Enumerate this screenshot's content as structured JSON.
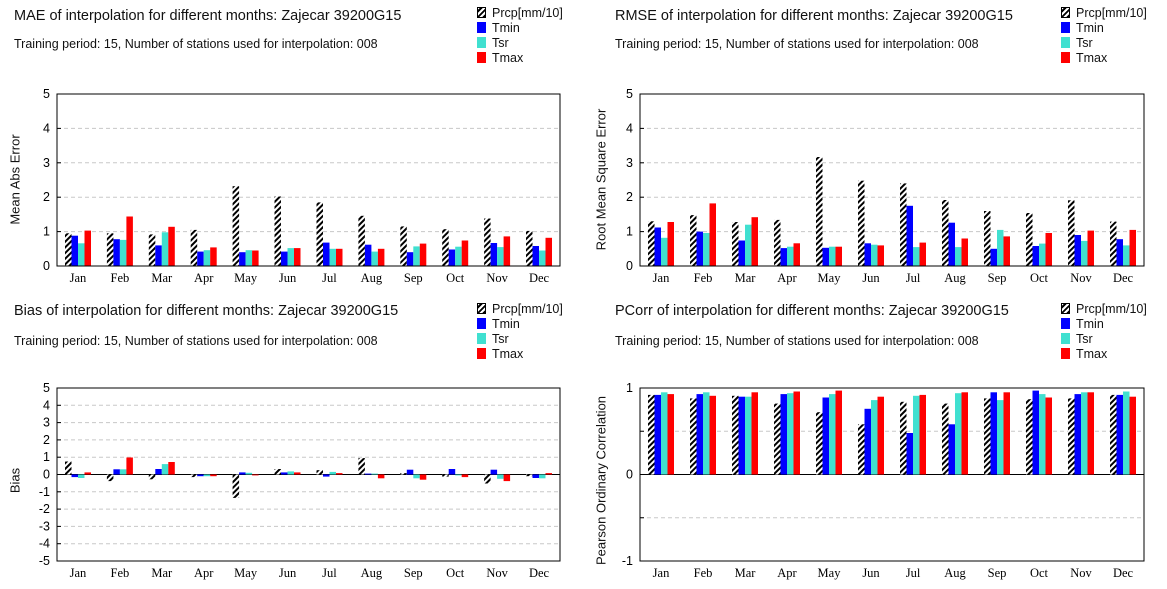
{
  "legend_items": [
    {
      "name": "Prcp[mm/10]",
      "color": "#000000",
      "pattern": "hatch"
    },
    {
      "name": "Tmin",
      "color": "#0000ff"
    },
    {
      "name": "Tsr",
      "color": "#40e0d0"
    },
    {
      "name": "Tmax",
      "color": "#ff0000"
    }
  ],
  "chart_data": [
    {
      "type": "bar",
      "title": "MAE of interpolation for different months: Zajecar  39200G15",
      "subtitle": "Training period: 15, Number of stations used for interpolation: 008",
      "ylabel": "Mean Abs Error",
      "ylim": [
        0,
        5
      ],
      "yticks": [
        "0",
        "1",
        "2",
        "3",
        "4",
        "5"
      ],
      "categories": [
        "Jan",
        "Feb",
        "Mar",
        "Apr",
        "May",
        "Jun",
        "Jul",
        "Aug",
        "Sep",
        "Oct",
        "Nov",
        "Dec"
      ],
      "grid": true,
      "series": [
        {
          "name": "Prcp[mm/10]",
          "values": [
            0.95,
            0.95,
            0.92,
            1.05,
            2.32,
            2.02,
            1.85,
            1.46,
            1.15,
            1.07,
            1.38,
            1.02
          ]
        },
        {
          "name": "Tmin",
          "values": [
            0.88,
            0.78,
            0.6,
            0.42,
            0.4,
            0.42,
            0.68,
            0.62,
            0.4,
            0.48,
            0.67,
            0.58
          ]
        },
        {
          "name": "Tsr",
          "values": [
            0.66,
            0.76,
            0.98,
            0.46,
            0.46,
            0.52,
            0.5,
            0.42,
            0.57,
            0.56,
            0.55,
            0.45
          ]
        },
        {
          "name": "Tmax",
          "values": [
            1.03,
            1.44,
            1.14,
            0.54,
            0.45,
            0.52,
            0.5,
            0.5,
            0.65,
            0.74,
            0.86,
            0.82
          ]
        }
      ]
    },
    {
      "type": "bar",
      "title": "RMSE of interpolation for different months: Zajecar  39200G15",
      "subtitle": "Training period: 15, Number of stations used for interpolation: 008",
      "ylabel": "Root Mean Square Error",
      "ylim": [
        0,
        5
      ],
      "yticks": [
        "0",
        "1",
        "2",
        "3",
        "4",
        "5"
      ],
      "categories": [
        "Jan",
        "Feb",
        "Mar",
        "Apr",
        "May",
        "Jun",
        "Jul",
        "Aug",
        "Sep",
        "Oct",
        "Nov",
        "Dec"
      ],
      "grid": true,
      "series": [
        {
          "name": "Prcp[mm/10]",
          "values": [
            1.3,
            1.48,
            1.28,
            1.34,
            3.17,
            2.48,
            2.4,
            1.92,
            1.6,
            1.54,
            1.91,
            1.29
          ]
        },
        {
          "name": "Tmin",
          "values": [
            1.12,
            1.0,
            0.74,
            0.52,
            0.53,
            0.66,
            1.75,
            1.26,
            0.5,
            0.58,
            0.9,
            0.78
          ]
        },
        {
          "name": "Tsr",
          "values": [
            0.82,
            0.96,
            1.2,
            0.56,
            0.56,
            0.62,
            0.55,
            0.55,
            1.05,
            0.65,
            0.73,
            0.6
          ]
        },
        {
          "name": "Tmax",
          "values": [
            1.28,
            1.82,
            1.42,
            0.66,
            0.56,
            0.6,
            0.68,
            0.8,
            0.86,
            0.96,
            1.03,
            1.05
          ]
        }
      ]
    },
    {
      "type": "bar",
      "title": "Bias of interpolation for different months: Zajecar  39200G15",
      "subtitle": "Training period: 15, Number of stations used for interpolation: 008",
      "ylabel": "Bias",
      "ylim": [
        -5,
        5
      ],
      "yticks": [
        "-5",
        "-4",
        "-3",
        "-2",
        "-1",
        "0",
        "1",
        "2",
        "3",
        "4",
        "5"
      ],
      "categories": [
        "Jan",
        "Feb",
        "Mar",
        "Apr",
        "May",
        "Jun",
        "Jul",
        "Aug",
        "Sep",
        "Oct",
        "Nov",
        "Dec"
      ],
      "grid": true,
      "series": [
        {
          "name": "Prcp[mm/10]",
          "values": [
            0.75,
            -0.38,
            -0.28,
            -0.15,
            -1.35,
            0.32,
            0.25,
            0.95,
            0.08,
            -0.12,
            -0.52,
            -0.1
          ]
        },
        {
          "name": "Tmin",
          "values": [
            -0.15,
            0.3,
            0.32,
            -0.1,
            0.12,
            0.12,
            -0.12,
            0.05,
            0.28,
            0.32,
            0.28,
            -0.2
          ]
        },
        {
          "name": "Tsr",
          "values": [
            -0.2,
            0.3,
            0.6,
            -0.1,
            0.1,
            0.18,
            0.15,
            0.05,
            -0.22,
            -0.05,
            -0.25,
            -0.22
          ]
        },
        {
          "name": "Tmax",
          "values": [
            0.12,
            0.98,
            0.72,
            -0.1,
            -0.05,
            0.12,
            0.08,
            -0.22,
            -0.3,
            -0.15,
            -0.38,
            0.08
          ]
        }
      ]
    },
    {
      "type": "bar",
      "title": "PCorr of interpolation for different months: Zajecar  39200G15",
      "subtitle": "Training period: 15, Number of stations used for interpolation: 008",
      "ylabel": "Pearson Ordinary Correlation",
      "ylim": [
        -1,
        1
      ],
      "yticks": [
        "-1",
        "",
        "0",
        "",
        "1"
      ],
      "categories": [
        "Jan",
        "Feb",
        "Mar",
        "Apr",
        "May",
        "Jun",
        "Jul",
        "Aug",
        "Sep",
        "Oct",
        "Nov",
        "Dec"
      ],
      "grid": true,
      "series": [
        {
          "name": "Prcp[mm/10]",
          "values": [
            0.92,
            0.88,
            0.91,
            0.82,
            0.72,
            0.58,
            0.84,
            0.82,
            0.88,
            0.87,
            0.88,
            0.92
          ]
        },
        {
          "name": "Tmin",
          "values": [
            0.92,
            0.93,
            0.9,
            0.93,
            0.89,
            0.76,
            0.48,
            0.58,
            0.95,
            0.97,
            0.93,
            0.92
          ]
        },
        {
          "name": "Tsr",
          "values": [
            0.95,
            0.95,
            0.9,
            0.94,
            0.93,
            0.86,
            0.91,
            0.94,
            0.86,
            0.93,
            0.95,
            0.96
          ]
        },
        {
          "name": "Tmax",
          "values": [
            0.93,
            0.91,
            0.95,
            0.96,
            0.97,
            0.9,
            0.92,
            0.95,
            0.95,
            0.89,
            0.95,
            0.9
          ]
        }
      ]
    }
  ]
}
